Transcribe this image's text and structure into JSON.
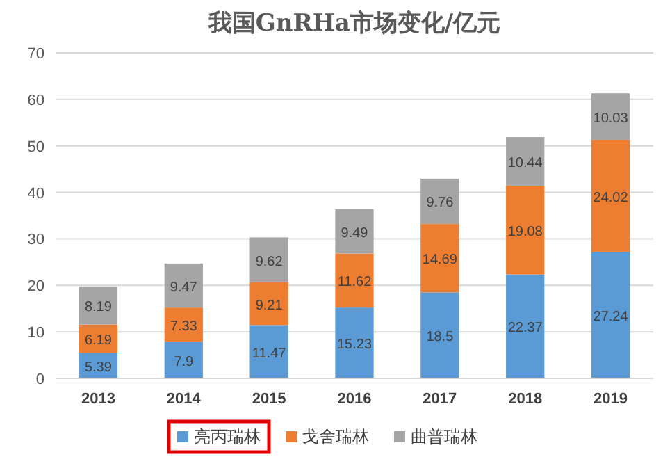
{
  "chart_data": {
    "type": "bar",
    "title": "我国GnRHa市场变化/亿元",
    "categories": [
      "2013",
      "2014",
      "2015",
      "2016",
      "2017",
      "2018",
      "2019"
    ],
    "stacked": true,
    "series": [
      {
        "name": "亮丙瑞林",
        "color": "#5b9bd5",
        "values": [
          5.39,
          7.9,
          11.47,
          15.23,
          18.5,
          22.37,
          27.24
        ]
      },
      {
        "name": "戈舍瑞林",
        "color": "#ed7d31",
        "values": [
          6.19,
          7.33,
          9.21,
          11.62,
          14.69,
          19.08,
          24.02
        ]
      },
      {
        "name": "曲普瑞林",
        "color": "#a5a5a5",
        "values": [
          8.19,
          9.47,
          9.62,
          9.49,
          9.76,
          10.44,
          10.03
        ]
      }
    ],
    "ylim": [
      0,
      70
    ],
    "yticks": [
      0,
      10,
      20,
      30,
      40,
      50,
      60,
      70
    ],
    "grid": "y",
    "legend": "bottom",
    "data_labels": true
  }
}
